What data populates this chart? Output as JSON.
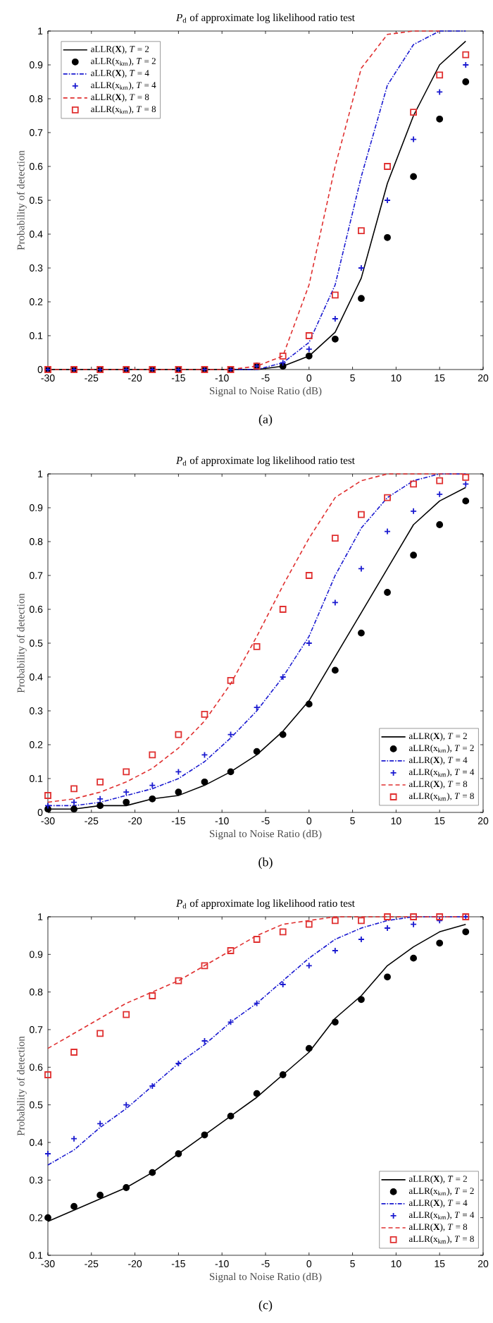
{
  "chart_data": [
    {
      "type": "line",
      "title": "*P*$_{d}$ of approximate log likelihood ratio test",
      "xlabel": "Signal to Noise Ratio (dB)",
      "ylabel": "Probability of detection",
      "annotations": [
        "(a)"
      ],
      "x": [
        -30,
        -27,
        -24,
        -21,
        -18,
        -15,
        -12,
        -9,
        -6,
        -3,
        0,
        3,
        6,
        9,
        12,
        15,
        18
      ],
      "xlim": [
        -30,
        20
      ],
      "xticks": [
        -30,
        -25,
        -20,
        -15,
        -10,
        -5,
        0,
        5,
        10,
        15,
        20
      ],
      "ylim": [
        0,
        1
      ],
      "yticks": [
        0,
        0.1,
        0.2,
        0.3,
        0.4,
        0.5,
        0.6,
        0.7,
        0.8,
        0.9,
        1
      ],
      "legend": "top left",
      "series": [
        {
          "name": "aLLR(**X**), *T* = 2",
          "type": "line",
          "color": "#000000",
          "line_style": "solid",
          "values": [
            0,
            0,
            0,
            0,
            0,
            0,
            0,
            0,
            0,
            0.01,
            0.04,
            0.11,
            0.27,
            0.55,
            0.75,
            0.9,
            0.97
          ]
        },
        {
          "name": "aLLR(x$_{km}$), *T* = 2",
          "type": "scatter",
          "marker": "circle",
          "color": "#000000",
          "values": [
            0,
            0,
            0,
            0,
            0,
            0,
            0,
            0,
            0.01,
            0.01,
            0.04,
            0.09,
            0.21,
            0.39,
            0.57,
            0.74,
            0.85
          ]
        },
        {
          "name": "aLLR(**X**), *T* = 4",
          "type": "line",
          "color": "#1a1ad0",
          "line_style": "dashdot",
          "values": [
            null,
            null,
            null,
            null,
            null,
            null,
            null,
            0,
            0,
            0.02,
            0.08,
            0.25,
            0.57,
            0.84,
            0.96,
            1,
            1
          ]
        },
        {
          "name": "aLLR(x$_{km}$), *T* = 4",
          "type": "scatter",
          "marker": "cross",
          "color": "#1a1ad0",
          "values": [
            0,
            0,
            0,
            0,
            0,
            0,
            0,
            0,
            0.01,
            0.02,
            0.06,
            0.15,
            0.3,
            0.5,
            0.68,
            0.82,
            0.9
          ]
        },
        {
          "name": "aLLR(**X**), *T* = 8",
          "type": "line",
          "color": "#e03030",
          "line_style": "dashed",
          "values": [
            0,
            0,
            0,
            0,
            0,
            0,
            0,
            0,
            0.01,
            0.04,
            0.25,
            0.6,
            0.89,
            0.99,
            1,
            1,
            null
          ]
        },
        {
          "name": "aLLR(x$_{km}$), *T* = 8",
          "type": "scatter",
          "marker": "square",
          "color": "#e03030",
          "values": [
            0,
            0,
            0,
            0,
            0,
            0,
            0,
            0,
            0.01,
            0.04,
            0.1,
            0.22,
            0.41,
            0.6,
            0.76,
            0.87,
            0.93
          ]
        }
      ]
    },
    {
      "type": "line",
      "title": "*P*$_{d}$ of approximate log likelihood ratio test",
      "xlabel": "Signal to Noise Ratio (dB)",
      "ylabel": "Probability of detection",
      "annotations": [
        "(b)"
      ],
      "x": [
        -30,
        -27,
        -24,
        -21,
        -18,
        -15,
        -12,
        -9,
        -6,
        -3,
        0,
        3,
        6,
        9,
        12,
        15,
        18
      ],
      "xlim": [
        -30,
        20
      ],
      "xticks": [
        -30,
        -25,
        -20,
        -15,
        -10,
        -5,
        0,
        5,
        10,
        15,
        20
      ],
      "ylim": [
        0,
        1
      ],
      "yticks": [
        0,
        0.1,
        0.2,
        0.3,
        0.4,
        0.5,
        0.6,
        0.7,
        0.8,
        0.9,
        1
      ],
      "legend": "bottom right",
      "series": [
        {
          "name": "aLLR(**X**), *T* = 2",
          "type": "line",
          "color": "#000000",
          "line_style": "solid",
          "values": [
            0.01,
            0.01,
            0.02,
            0.02,
            0.04,
            0.05,
            0.08,
            0.12,
            0.17,
            0.24,
            0.33,
            0.46,
            0.59,
            0.72,
            0.85,
            0.92,
            0.96
          ]
        },
        {
          "name": "aLLR(x$_{km}$), *T* = 2",
          "type": "scatter",
          "marker": "circle",
          "color": "#000000",
          "values": [
            0.01,
            0.01,
            0.02,
            0.03,
            0.04,
            0.06,
            0.09,
            0.12,
            0.18,
            0.23,
            0.32,
            0.42,
            0.53,
            0.65,
            0.76,
            0.85,
            0.92
          ]
        },
        {
          "name": "aLLR(**X**), *T* = 4",
          "type": "line",
          "color": "#1a1ad0",
          "line_style": "dashdot",
          "values": [
            0.02,
            0.02,
            0.03,
            0.05,
            0.07,
            0.1,
            0.15,
            0.22,
            0.3,
            0.4,
            0.52,
            0.7,
            0.84,
            0.93,
            0.98,
            1,
            1
          ]
        },
        {
          "name": "aLLR(x$_{km}$), *T* = 4",
          "type": "scatter",
          "marker": "cross",
          "color": "#1a1ad0",
          "values": [
            0.02,
            0.03,
            0.04,
            0.06,
            0.08,
            0.12,
            0.17,
            0.23,
            0.31,
            0.4,
            0.5,
            0.62,
            0.72,
            0.83,
            0.89,
            0.94,
            0.97
          ]
        },
        {
          "name": "aLLR(**X**), *T* = 8",
          "type": "line",
          "color": "#e03030",
          "line_style": "dashed",
          "values": [
            0.03,
            0.04,
            0.06,
            0.09,
            0.13,
            0.19,
            0.27,
            0.38,
            0.52,
            0.67,
            0.81,
            0.93,
            0.98,
            1,
            1,
            1,
            1
          ]
        },
        {
          "name": "aLLR(x$_{km}$), *T* = 8",
          "type": "scatter",
          "marker": "square",
          "color": "#e03030",
          "values": [
            0.05,
            0.07,
            0.09,
            0.12,
            0.17,
            0.23,
            0.29,
            0.39,
            0.49,
            0.6,
            0.7,
            0.81,
            0.88,
            0.93,
            0.97,
            0.98,
            0.99
          ]
        }
      ]
    },
    {
      "type": "line",
      "title": "*P*$_{d}$ of approximate log likelihood ratio test",
      "xlabel": "Signal to Noise Ratio (dB)",
      "ylabel": "Probability of detection",
      "annotations": [
        "(c)"
      ],
      "x": [
        -30,
        -27,
        -24,
        -21,
        -18,
        -15,
        -12,
        -9,
        -6,
        -3,
        0,
        3,
        6,
        9,
        12,
        15,
        18
      ],
      "xlim": [
        -30,
        20
      ],
      "xticks": [
        -30,
        -25,
        -20,
        -15,
        -10,
        -5,
        0,
        5,
        10,
        15,
        20
      ],
      "ylim": [
        0.1,
        1
      ],
      "yticks": [
        0.1,
        0.2,
        0.3,
        0.4,
        0.5,
        0.6,
        0.7,
        0.8,
        0.9,
        1
      ],
      "legend": "bottom right",
      "series": [
        {
          "name": "aLLR(**X**), *T* = 2",
          "type": "line",
          "color": "#000000",
          "line_style": "solid",
          "values": [
            0.19,
            0.22,
            0.25,
            0.28,
            0.32,
            0.37,
            0.42,
            0.47,
            0.52,
            0.58,
            0.64,
            0.73,
            0.79,
            0.87,
            0.92,
            0.96,
            0.98
          ]
        },
        {
          "name": "aLLR(x$_{km}$), *T* = 2",
          "type": "scatter",
          "marker": "circle",
          "color": "#000000",
          "values": [
            0.2,
            0.23,
            0.26,
            0.28,
            0.32,
            0.37,
            0.42,
            0.47,
            0.53,
            0.58,
            0.65,
            0.72,
            0.78,
            0.84,
            0.89,
            0.93,
            0.96
          ]
        },
        {
          "name": "aLLR(**X**), *T* = 4",
          "type": "line",
          "color": "#1a1ad0",
          "line_style": "dashdot",
          "values": [
            0.34,
            0.38,
            0.44,
            0.49,
            0.55,
            0.61,
            0.66,
            0.72,
            0.77,
            0.83,
            0.89,
            0.94,
            0.97,
            0.99,
            1,
            1,
            1
          ]
        },
        {
          "name": "aLLR(x$_{km}$), *T* = 4",
          "type": "scatter",
          "marker": "cross",
          "color": "#1a1ad0",
          "values": [
            0.37,
            0.41,
            0.45,
            0.5,
            0.55,
            0.61,
            0.67,
            0.72,
            0.77,
            0.82,
            0.87,
            0.91,
            0.94,
            0.97,
            0.98,
            0.99,
            1
          ]
        },
        {
          "name": "aLLR(**X**), *T* = 8",
          "type": "line",
          "color": "#e03030",
          "line_style": "dashed",
          "values": [
            0.65,
            0.69,
            0.73,
            0.77,
            0.8,
            0.83,
            0.87,
            0.91,
            0.95,
            0.98,
            0.99,
            1,
            1,
            1,
            1,
            1,
            1
          ]
        },
        {
          "name": "aLLR(x$_{km}$), *T* = 8",
          "type": "scatter",
          "marker": "square",
          "color": "#e03030",
          "values": [
            0.58,
            0.64,
            0.69,
            0.74,
            0.79,
            0.83,
            0.87,
            0.91,
            0.94,
            0.96,
            0.98,
            0.99,
            0.99,
            1,
            1,
            1,
            1
          ]
        }
      ]
    }
  ]
}
